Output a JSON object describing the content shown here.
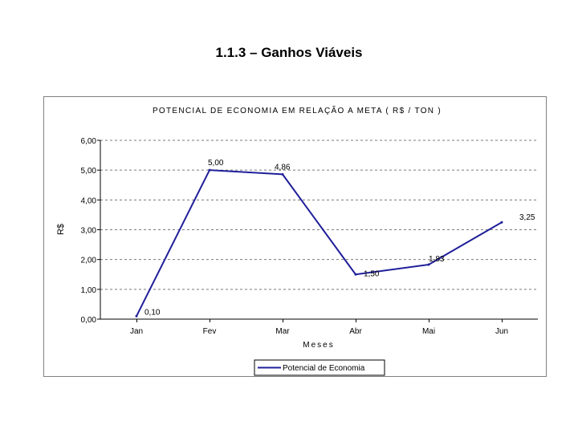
{
  "page": {
    "title": "1.1.3 – Ganhos Viáveis"
  },
  "chart_data": {
    "type": "line",
    "title": "POTENCIAL DE ECONOMIA EM RELAÇÃO A META ( R$ / TON )",
    "xlabel": "Meses",
    "ylabel": "R$",
    "categories": [
      "Jan",
      "Fev",
      "Mar",
      "Abr",
      "Mai",
      "Jun"
    ],
    "series": [
      {
        "name": "Potencial de Economia",
        "values": [
          0.1,
          5.0,
          4.86,
          1.5,
          1.83,
          3.25
        ],
        "labels": [
          "0,10",
          "5,00",
          "4,86",
          "1,50",
          "1,83",
          "3,25"
        ],
        "color": "#1f1f9a"
      }
    ],
    "ylim": [
      0,
      6
    ],
    "yticks": [
      "0,00",
      "1,00",
      "2,00",
      "3,00",
      "4,00",
      "5,00",
      "6,00"
    ],
    "grid": true,
    "legend": "bottom"
  }
}
